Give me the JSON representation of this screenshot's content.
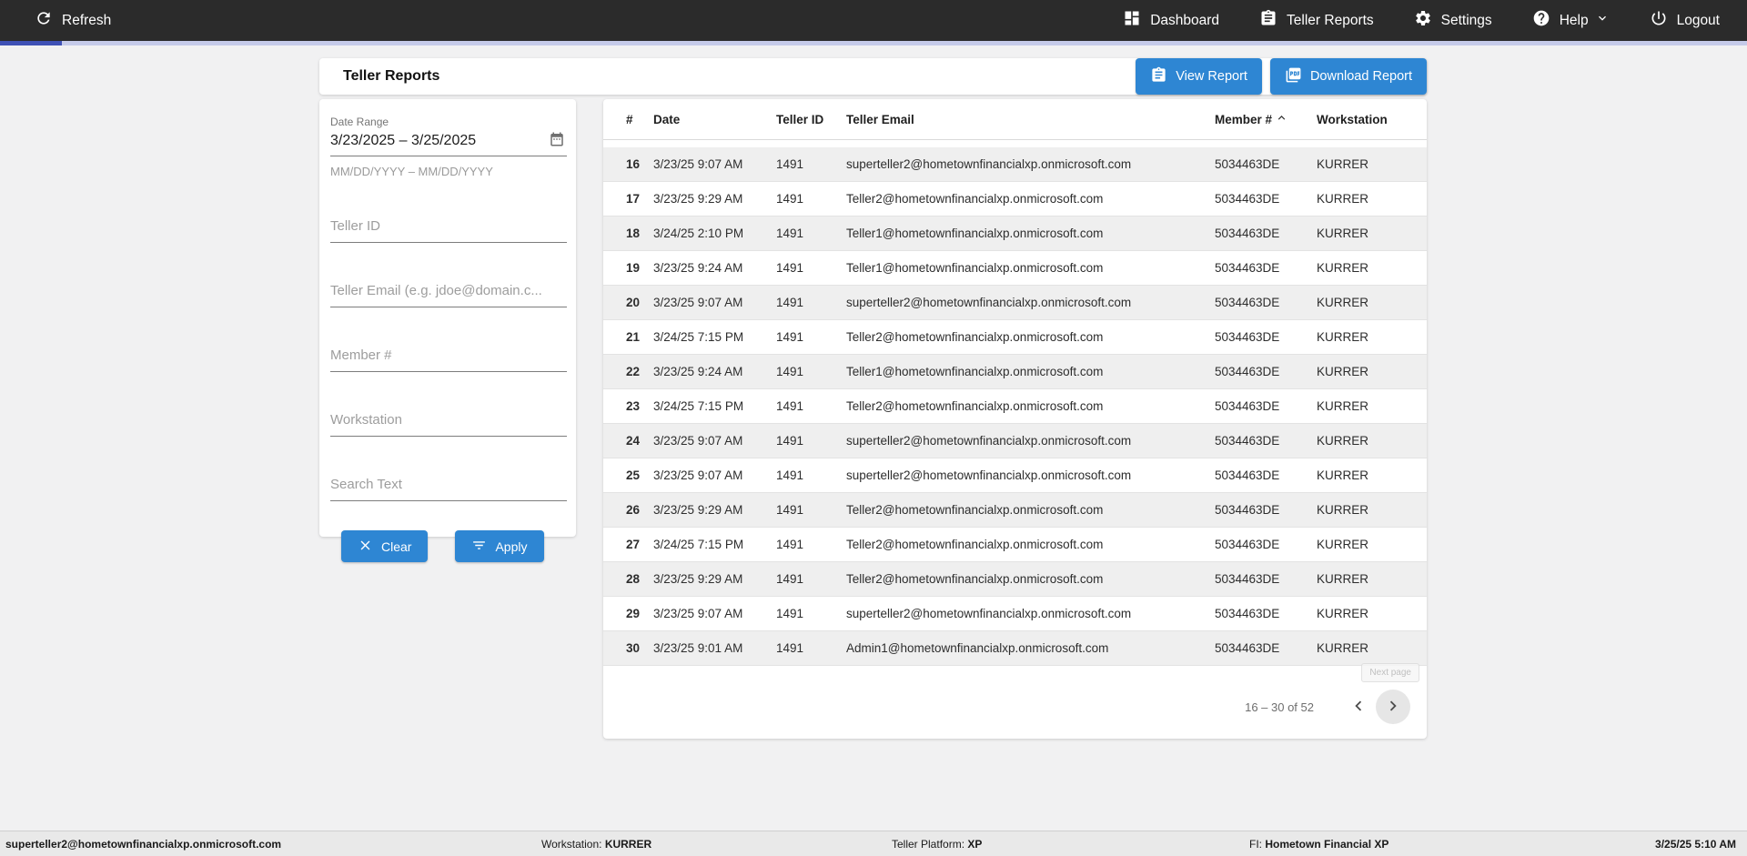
{
  "colors": {
    "accent_blue": "#2e86d3",
    "navbar_bg": "#2b2b2b",
    "progress_bar": "#3f51b5",
    "progress_track": "#c5cae9",
    "row_stripe": "#efefef"
  },
  "topnav": {
    "refresh_label": "Refresh",
    "items": [
      {
        "label": "Dashboard",
        "icon": "dashboard-icon"
      },
      {
        "label": "Teller Reports",
        "icon": "clipboard-icon"
      },
      {
        "label": "Settings",
        "icon": "gear-icon"
      },
      {
        "label": "Help",
        "icon": "help-icon"
      },
      {
        "label": "Logout",
        "icon": "power-icon"
      }
    ]
  },
  "header": {
    "title": "Teller Reports",
    "view_report_label": "View Report",
    "download_report_label": "Download Report"
  },
  "filters": {
    "date_range": {
      "label": "Date Range",
      "value": "3/23/2025 – 3/25/2025",
      "hint": "MM/DD/YYYY – MM/DD/YYYY"
    },
    "teller_id": {
      "placeholder": "Teller ID"
    },
    "teller_email": {
      "placeholder": "Teller Email (e.g. jdoe@domain.c..."
    },
    "member_number": {
      "placeholder": "Member #"
    },
    "workstation": {
      "placeholder": "Workstation"
    },
    "search_text": {
      "placeholder": "Search Text"
    },
    "clear_label": "Clear",
    "apply_label": "Apply"
  },
  "table": {
    "columns": [
      "#",
      "Date",
      "Teller ID",
      "Teller Email",
      "Member #",
      "Workstation"
    ],
    "sort": {
      "column": "Member #",
      "direction": "ascending"
    },
    "rows": [
      [
        "16",
        "3/23/25 9:07 AM",
        "1491",
        "superteller2@hometownfinancialxp.onmicrosoft.com",
        "5034463DE",
        "KURRER"
      ],
      [
        "17",
        "3/23/25 9:29 AM",
        "1491",
        "Teller2@hometownfinancialxp.onmicrosoft.com",
        "5034463DE",
        "KURRER"
      ],
      [
        "18",
        "3/24/25 2:10 PM",
        "1491",
        "Teller1@hometownfinancialxp.onmicrosoft.com",
        "5034463DE",
        "KURRER"
      ],
      [
        "19",
        "3/23/25 9:24 AM",
        "1491",
        "Teller1@hometownfinancialxp.onmicrosoft.com",
        "5034463DE",
        "KURRER"
      ],
      [
        "20",
        "3/23/25 9:07 AM",
        "1491",
        "superteller2@hometownfinancialxp.onmicrosoft.com",
        "5034463DE",
        "KURRER"
      ],
      [
        "21",
        "3/24/25 7:15 PM",
        "1491",
        "Teller2@hometownfinancialxp.onmicrosoft.com",
        "5034463DE",
        "KURRER"
      ],
      [
        "22",
        "3/23/25 9:24 AM",
        "1491",
        "Teller1@hometownfinancialxp.onmicrosoft.com",
        "5034463DE",
        "KURRER"
      ],
      [
        "23",
        "3/24/25 7:15 PM",
        "1491",
        "Teller2@hometownfinancialxp.onmicrosoft.com",
        "5034463DE",
        "KURRER"
      ],
      [
        "24",
        "3/23/25 9:07 AM",
        "1491",
        "superteller2@hometownfinancialxp.onmicrosoft.com",
        "5034463DE",
        "KURRER"
      ],
      [
        "25",
        "3/23/25 9:07 AM",
        "1491",
        "superteller2@hometownfinancialxp.onmicrosoft.com",
        "5034463DE",
        "KURRER"
      ],
      [
        "26",
        "3/23/25 9:29 AM",
        "1491",
        "Teller2@hometownfinancialxp.onmicrosoft.com",
        "5034463DE",
        "KURRER"
      ],
      [
        "27",
        "3/24/25 7:15 PM",
        "1491",
        "Teller2@hometownfinancialxp.onmicrosoft.com",
        "5034463DE",
        "KURRER"
      ],
      [
        "28",
        "3/23/25 9:29 AM",
        "1491",
        "Teller2@hometownfinancialxp.onmicrosoft.com",
        "5034463DE",
        "KURRER"
      ],
      [
        "29",
        "3/23/25 9:07 AM",
        "1491",
        "superteller2@hometownfinancialxp.onmicrosoft.com",
        "5034463DE",
        "KURRER"
      ],
      [
        "30",
        "3/23/25 9:01 AM",
        "1491",
        "Admin1@hometownfinancialxp.onmicrosoft.com",
        "5034463DE",
        "KURRER"
      ]
    ],
    "pagination": {
      "range_label": "16 – 30 of 52",
      "next_tooltip": "Next page"
    }
  },
  "statusbar": {
    "user_email": "superteller2@hometownfinancialxp.onmicrosoft.com",
    "workstation_label": "Workstation:",
    "workstation_value": "KURRER",
    "teller_platform_label": "Teller Platform:",
    "teller_platform_value": "XP",
    "fi_label": "FI:",
    "fi_value": "Hometown Financial XP",
    "datetime": "3/25/25 5:10 AM"
  }
}
